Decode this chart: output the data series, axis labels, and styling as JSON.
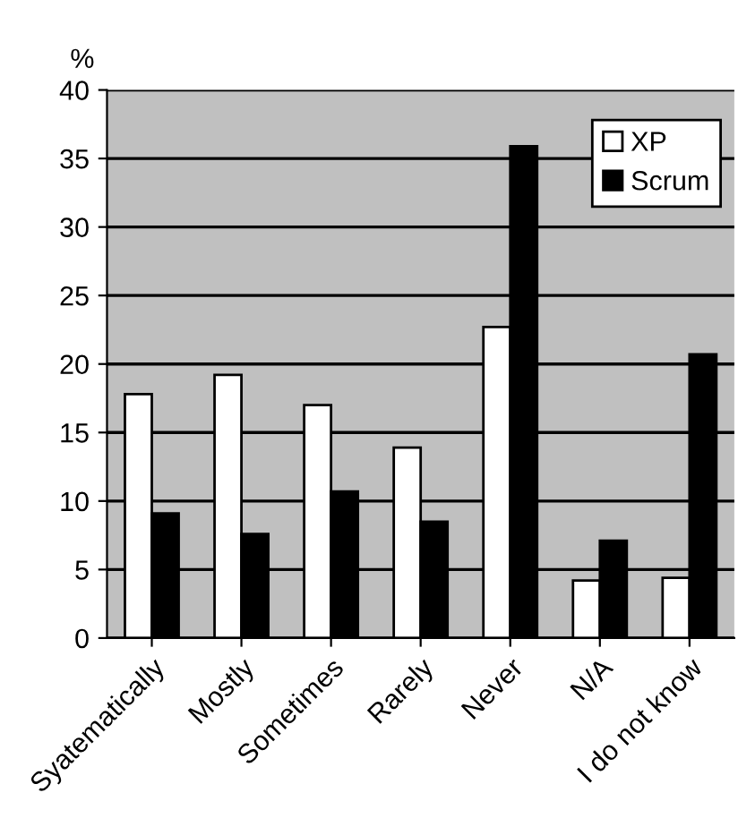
{
  "chart_data": {
    "type": "bar",
    "ylabel": "%",
    "categories": [
      "Syatematically",
      "Mostly",
      "Sometimes",
      "Rarely",
      "Never",
      "N/A",
      "I do not know"
    ],
    "series": [
      {
        "name": "XP",
        "color": "#ffffff",
        "values": [
          17.8,
          19.2,
          17.0,
          13.9,
          22.7,
          4.2,
          4.4
        ]
      },
      {
        "name": "Scrum",
        "color": "#000000",
        "values": [
          9.1,
          7.6,
          10.7,
          8.5,
          35.9,
          7.1,
          20.7
        ]
      }
    ],
    "ylim": [
      0,
      40
    ],
    "yticks": [
      0,
      5,
      10,
      15,
      20,
      25,
      30,
      35,
      40
    ],
    "grid": "y",
    "legend": "top right"
  }
}
